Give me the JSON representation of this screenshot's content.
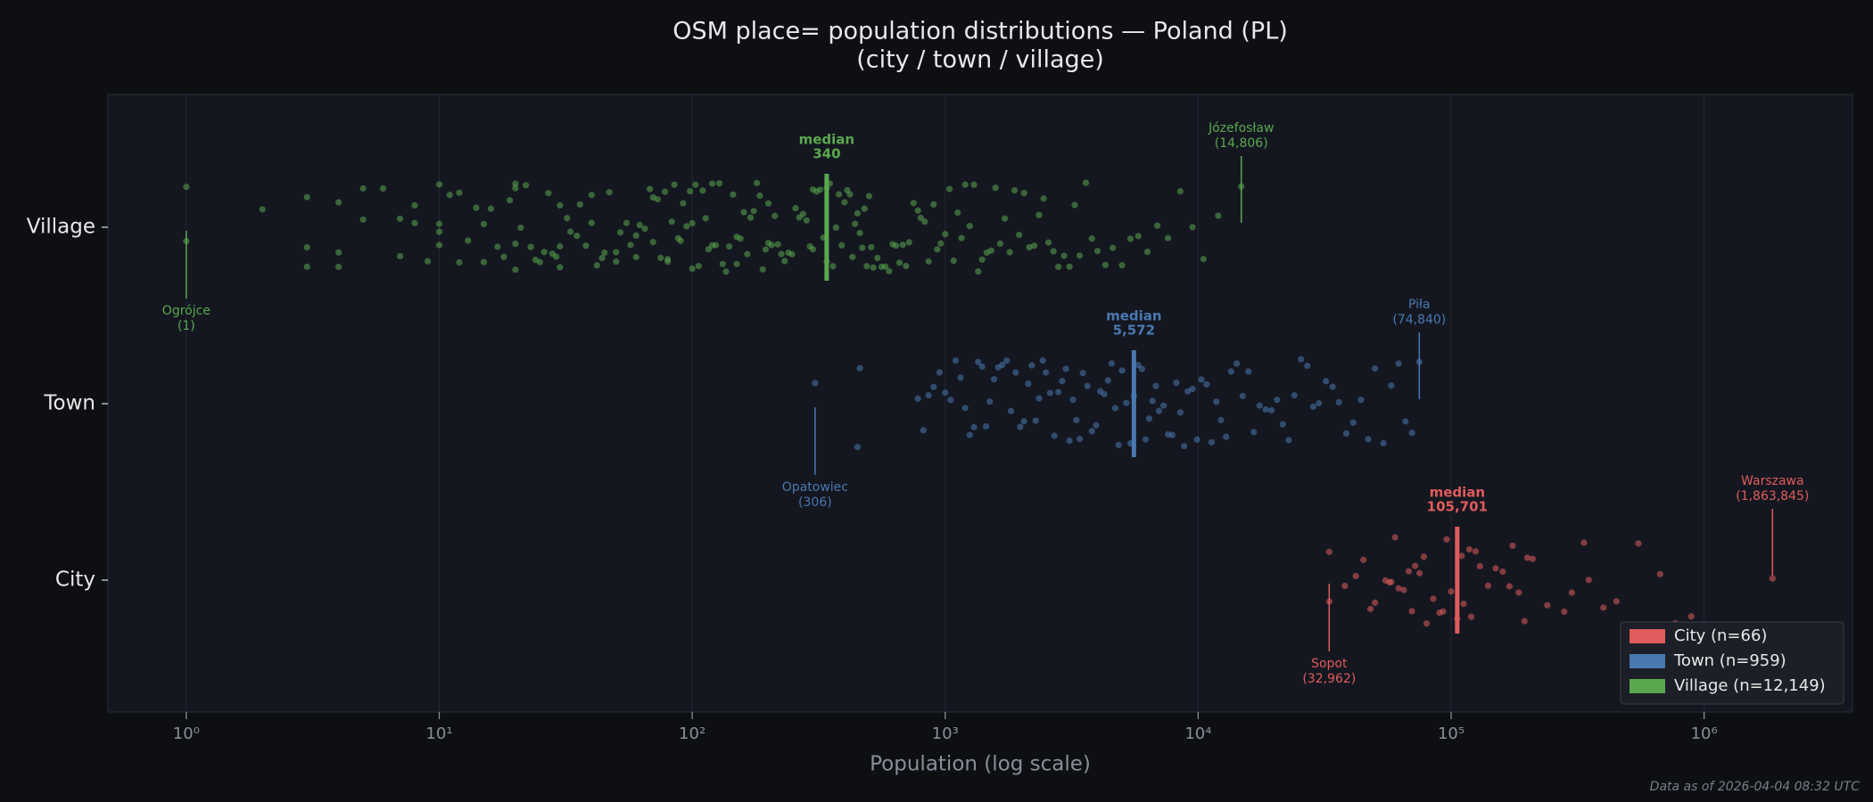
{
  "chart_data": {
    "type": "strip",
    "title": "OSM place= population distributions — Poland (PL)",
    "subtitle": "(city / town / village)",
    "x_label": "Population (log scale)",
    "footer": "Data as of 2026-04-04 08:32 UTC",
    "xscale": "log",
    "xlim": [
      0.49,
      3860000
    ],
    "xticks": [
      {
        "value": 1,
        "label": "10⁰"
      },
      {
        "value": 10,
        "label": "10¹"
      },
      {
        "value": 100,
        "label": "10²"
      },
      {
        "value": 1000,
        "label": "10³"
      },
      {
        "value": 10000,
        "label": "10⁴"
      },
      {
        "value": 100000,
        "label": "10⁵"
      },
      {
        "value": 1000000,
        "label": "10⁶"
      }
    ],
    "grid": true,
    "legend": "lower right",
    "median_text": "median",
    "categories": [
      "City",
      "Town",
      "Village"
    ],
    "series": [
      {
        "name": "City",
        "legend_label": "City  (n=66)",
        "color": "#e05c5c",
        "median": 105701,
        "median_label": "105,701",
        "min": {
          "name": "Sopot",
          "value": 32962,
          "label": "(32,962)"
        },
        "max": {
          "name": "Warszawa",
          "value": 1863845,
          "label": "(1,863,845)"
        },
        "values": [
          32962,
          33000,
          38000,
          42000,
          45000,
          48000,
          50000,
          55000,
          57000,
          58000,
          60000,
          62000,
          65000,
          68000,
          70000,
          72000,
          75000,
          78000,
          80000,
          85000,
          90000,
          93000,
          96000,
          100000,
          105701,
          110000,
          112000,
          118000,
          120000,
          125000,
          130000,
          140000,
          150000,
          160000,
          170000,
          175000,
          185000,
          195000,
          200000,
          210000,
          240000,
          280000,
          300000,
          335000,
          350000,
          400000,
          450000,
          550000,
          670000,
          770000,
          890000,
          1863845
        ]
      },
      {
        "name": "Town",
        "legend_label": "Town  (n=959)",
        "color": "#4a78b0",
        "median": 5572,
        "median_label": "5,572",
        "min": {
          "name": "Opatowiec",
          "value": 306,
          "label": "(306)"
        },
        "max": {
          "name": "Piła",
          "value": 74840,
          "label": "(74,840)"
        },
        "values": [
          306,
          450,
          460,
          780,
          820,
          860,
          900,
          950,
          1000,
          1050,
          1100,
          1150,
          1200,
          1250,
          1300,
          1350,
          1400,
          1450,
          1500,
          1560,
          1620,
          1680,
          1750,
          1820,
          1900,
          1980,
          2050,
          2130,
          2200,
          2280,
          2350,
          2430,
          2500,
          2600,
          2700,
          2800,
          2900,
          3000,
          3100,
          3200,
          3300,
          3400,
          3500,
          3650,
          3800,
          3950,
          4100,
          4250,
          4400,
          4550,
          4700,
          4850,
          5000,
          5200,
          5400,
          5572,
          5800,
          6000,
          6200,
          6400,
          6600,
          6800,
          7000,
          7300,
          7600,
          7900,
          8200,
          8500,
          8800,
          9100,
          9500,
          9900,
          10300,
          10800,
          11300,
          11800,
          12300,
          12900,
          13500,
          14200,
          15000,
          15800,
          16600,
          17500,
          18500,
          19500,
          20500,
          21600,
          22800,
          24000,
          25500,
          27000,
          28500,
          30000,
          32000,
          34000,
          36000,
          38500,
          41000,
          44000,
          47000,
          50000,
          54000,
          58000,
          62000,
          66000,
          70000,
          74840
        ]
      },
      {
        "name": "Village",
        "legend_label": "Village  (n=12,149)",
        "color": "#5aa84e",
        "median": 340,
        "median_label": "340",
        "min": {
          "name": "Ogrójce",
          "value": 1,
          "label": "(1)"
        },
        "max": {
          "name": "Józefosław",
          "value": 14806,
          "label": "(14,806)"
        },
        "values": [
          1,
          1,
          2,
          3,
          3,
          3,
          4,
          4,
          4,
          5,
          5,
          6,
          7,
          7,
          8,
          8,
          9,
          10,
          10,
          10,
          10,
          11,
          12,
          12,
          13,
          14,
          15,
          15,
          16,
          17,
          18,
          19,
          20,
          20,
          20,
          20,
          21,
          22,
          23,
          24,
          25,
          26,
          27,
          28,
          29,
          30,
          30,
          30,
          32,
          33,
          35,
          36,
          38,
          40,
          40,
          42,
          44,
          45,
          47,
          50,
          50,
          52,
          55,
          57,
          60,
          60,
          62,
          65,
          68,
          70,
          70,
          73,
          75,
          78,
          80,
          80,
          83,
          85,
          88,
          90,
          92,
          95,
          98,
          100,
          100,
          103,
          106,
          110,
          113,
          116,
          120,
          120,
          124,
          128,
          132,
          136,
          140,
          145,
          150,
          150,
          155,
          160,
          165,
          170,
          175,
          180,
          185,
          190,
          195,
          200,
          200,
          206,
          212,
          218,
          225,
          232,
          240,
          248,
          256,
          265,
          274,
          283,
          292,
          300,
          300,
          310,
          320,
          330,
          340,
          340,
          350,
          360,
          370,
          380,
          390,
          400,
          410,
          420,
          430,
          440,
          450,
          460,
          470,
          480,
          490,
          500,
          510,
          520,
          540,
          560,
          580,
          600,
          620,
          640,
          660,
          680,
          700,
          720,
          750,
          780,
          800,
          830,
          860,
          900,
          930,
          960,
          1000,
          1040,
          1080,
          1120,
          1160,
          1200,
          1250,
          1300,
          1350,
          1400,
          1460,
          1520,
          1580,
          1650,
          1720,
          1800,
          1880,
          1960,
          2050,
          2150,
          2250,
          2350,
          2450,
          2560,
          2680,
          2800,
          2950,
          3100,
          3250,
          3400,
          3600,
          3800,
          4000,
          4300,
          4600,
          5000,
          5400,
          5800,
          6300,
          6900,
          7600,
          8500,
          9500,
          10500,
          12000,
          14806
        ]
      }
    ]
  }
}
